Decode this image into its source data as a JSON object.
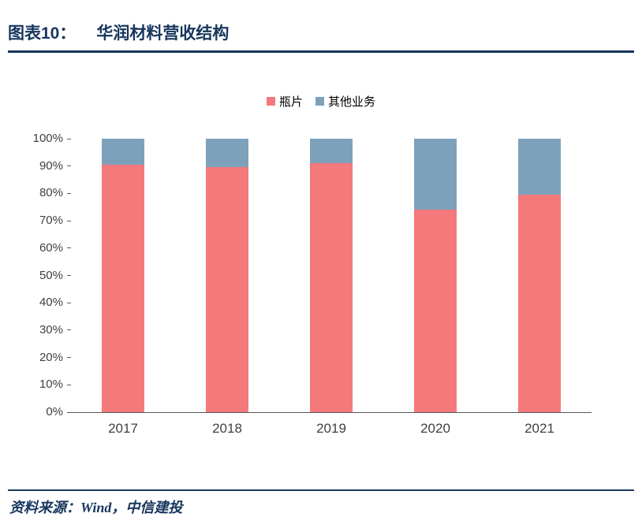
{
  "header": {
    "figure_label": "图表10：",
    "title": "华润材料营收结构"
  },
  "chart_data": {
    "type": "bar",
    "stacked": true,
    "stacked_percent": true,
    "title": "华润材料营收结构",
    "categories": [
      "2017",
      "2018",
      "2019",
      "2020",
      "2021"
    ],
    "series": [
      {
        "id": "bottle-chip",
        "name": "瓶片",
        "color": "#F4797B",
        "values": [
          90.5,
          89.5,
          91,
          74,
          79.5
        ]
      },
      {
        "id": "other-business",
        "name": "其他业务",
        "color": "#7DA1BB",
        "values": [
          9.5,
          10.5,
          9,
          26,
          20.5
        ]
      }
    ],
    "ylim": [
      0,
      100
    ],
    "y_ticks": [
      "0%",
      "10%",
      "20%",
      "30%",
      "40%",
      "50%",
      "60%",
      "70%",
      "80%",
      "90%",
      "100%"
    ],
    "grid": false,
    "legend_position": "top",
    "axis_color": "#595959"
  },
  "footer": {
    "source": "资料来源：Wind，中信建投"
  }
}
